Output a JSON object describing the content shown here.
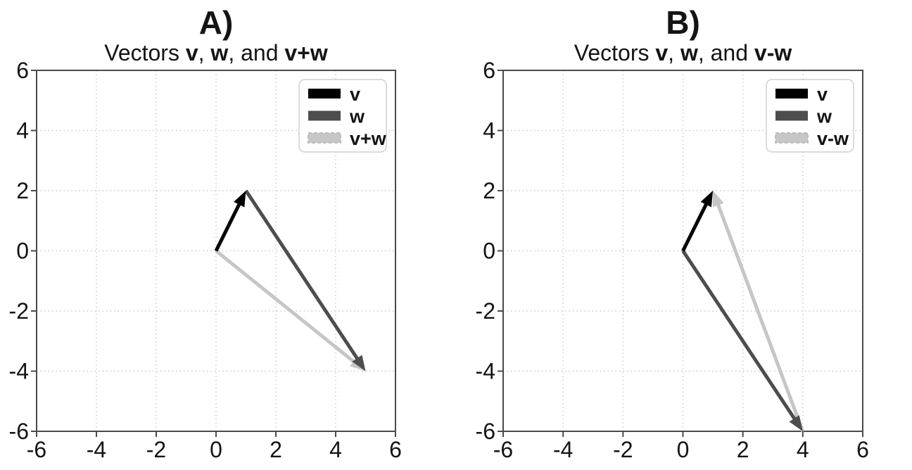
{
  "figure": {
    "background": "#ffffff",
    "description": "Two side-by-side vector (quiver) plots on square axes"
  },
  "colors": {
    "axes_border": "#4a4a4a",
    "grid": "#c9c9c9",
    "tick_label": "#141414",
    "legend_border": "#cfcfcf",
    "legend_background": "#ffffff",
    "dashed_swatch_edge": "#bdbdbd",
    "vector_black": "#000000",
    "vector_dark_gray": "#4d4d4d",
    "vector_light_gray": "#c6c6c6"
  },
  "chart_data": [
    {
      "type": "quiver",
      "panel_label": "A)",
      "title_plain": "Vectors v, w, and v+w",
      "title_parts": [
        {
          "text": "Vectors ",
          "bold": false
        },
        {
          "text": "v",
          "bold": true
        },
        {
          "text": ", ",
          "bold": false
        },
        {
          "text": "w",
          "bold": true
        },
        {
          "text": ", and ",
          "bold": false
        },
        {
          "text": "v+w",
          "bold": true
        }
      ],
      "xlim": [
        -6,
        6
      ],
      "ylim": [
        -6,
        6
      ],
      "xticks": [
        -6,
        -4,
        -2,
        0,
        2,
        4,
        6
      ],
      "yticks": [
        -6,
        -4,
        -2,
        0,
        2,
        4,
        6
      ],
      "xtick_labels": [
        "-6",
        "-4",
        "-2",
        "0",
        "2",
        "4",
        "6"
      ],
      "ytick_labels": [
        "-6",
        "-4",
        "-2",
        "0",
        "2",
        "4",
        "6"
      ],
      "grid": true,
      "grid_style": "dotted",
      "legend": {
        "position": "upper-right",
        "entries": [
          {
            "label": "v",
            "color": "#000000",
            "dashed": false
          },
          {
            "label": "w",
            "color": "#4d4d4d",
            "dashed": false
          },
          {
            "label": "v+w",
            "color": "#c6c6c6",
            "dashed": true
          }
        ]
      },
      "vectors": [
        {
          "name": "v+w",
          "start": [
            0,
            0
          ],
          "end": [
            5,
            -4
          ],
          "color": "#c6c6c6",
          "linestyle": "dashed"
        },
        {
          "name": "w",
          "start": [
            1,
            2
          ],
          "end": [
            5,
            -4
          ],
          "color": "#4d4d4d",
          "linestyle": "solid"
        },
        {
          "name": "v",
          "start": [
            0,
            0
          ],
          "end": [
            1,
            2
          ],
          "color": "#000000",
          "linestyle": "solid"
        }
      ]
    },
    {
      "type": "quiver",
      "panel_label": "B)",
      "title_plain": "Vectors v, w, and v-w",
      "title_parts": [
        {
          "text": "Vectors ",
          "bold": false
        },
        {
          "text": "v",
          "bold": true
        },
        {
          "text": ", ",
          "bold": false
        },
        {
          "text": "w",
          "bold": true
        },
        {
          "text": ", and ",
          "bold": false
        },
        {
          "text": "v-w",
          "bold": true
        }
      ],
      "xlim": [
        -6,
        6
      ],
      "ylim": [
        -6,
        6
      ],
      "xticks": [
        -6,
        -4,
        -2,
        0,
        2,
        4,
        6
      ],
      "yticks": [
        -6,
        -4,
        -2,
        0,
        2,
        4,
        6
      ],
      "xtick_labels": [
        "-6",
        "-4",
        "-2",
        "0",
        "2",
        "4",
        "6"
      ],
      "ytick_labels": [
        "-6",
        "-4",
        "-2",
        "0",
        "2",
        "4",
        "6"
      ],
      "grid": true,
      "grid_style": "dotted",
      "legend": {
        "position": "upper-right",
        "entries": [
          {
            "label": "v",
            "color": "#000000",
            "dashed": false
          },
          {
            "label": "w",
            "color": "#4d4d4d",
            "dashed": false
          },
          {
            "label": "v-w",
            "color": "#c6c6c6",
            "dashed": true
          }
        ]
      },
      "vectors": [
        {
          "name": "v-w",
          "start": [
            4,
            -6
          ],
          "end": [
            1,
            2
          ],
          "color": "#c6c6c6",
          "linestyle": "dashed"
        },
        {
          "name": "w",
          "start": [
            0,
            0
          ],
          "end": [
            4,
            -6
          ],
          "color": "#4d4d4d",
          "linestyle": "solid"
        },
        {
          "name": "v",
          "start": [
            0,
            0
          ],
          "end": [
            1,
            2
          ],
          "color": "#000000",
          "linestyle": "solid"
        }
      ]
    }
  ]
}
